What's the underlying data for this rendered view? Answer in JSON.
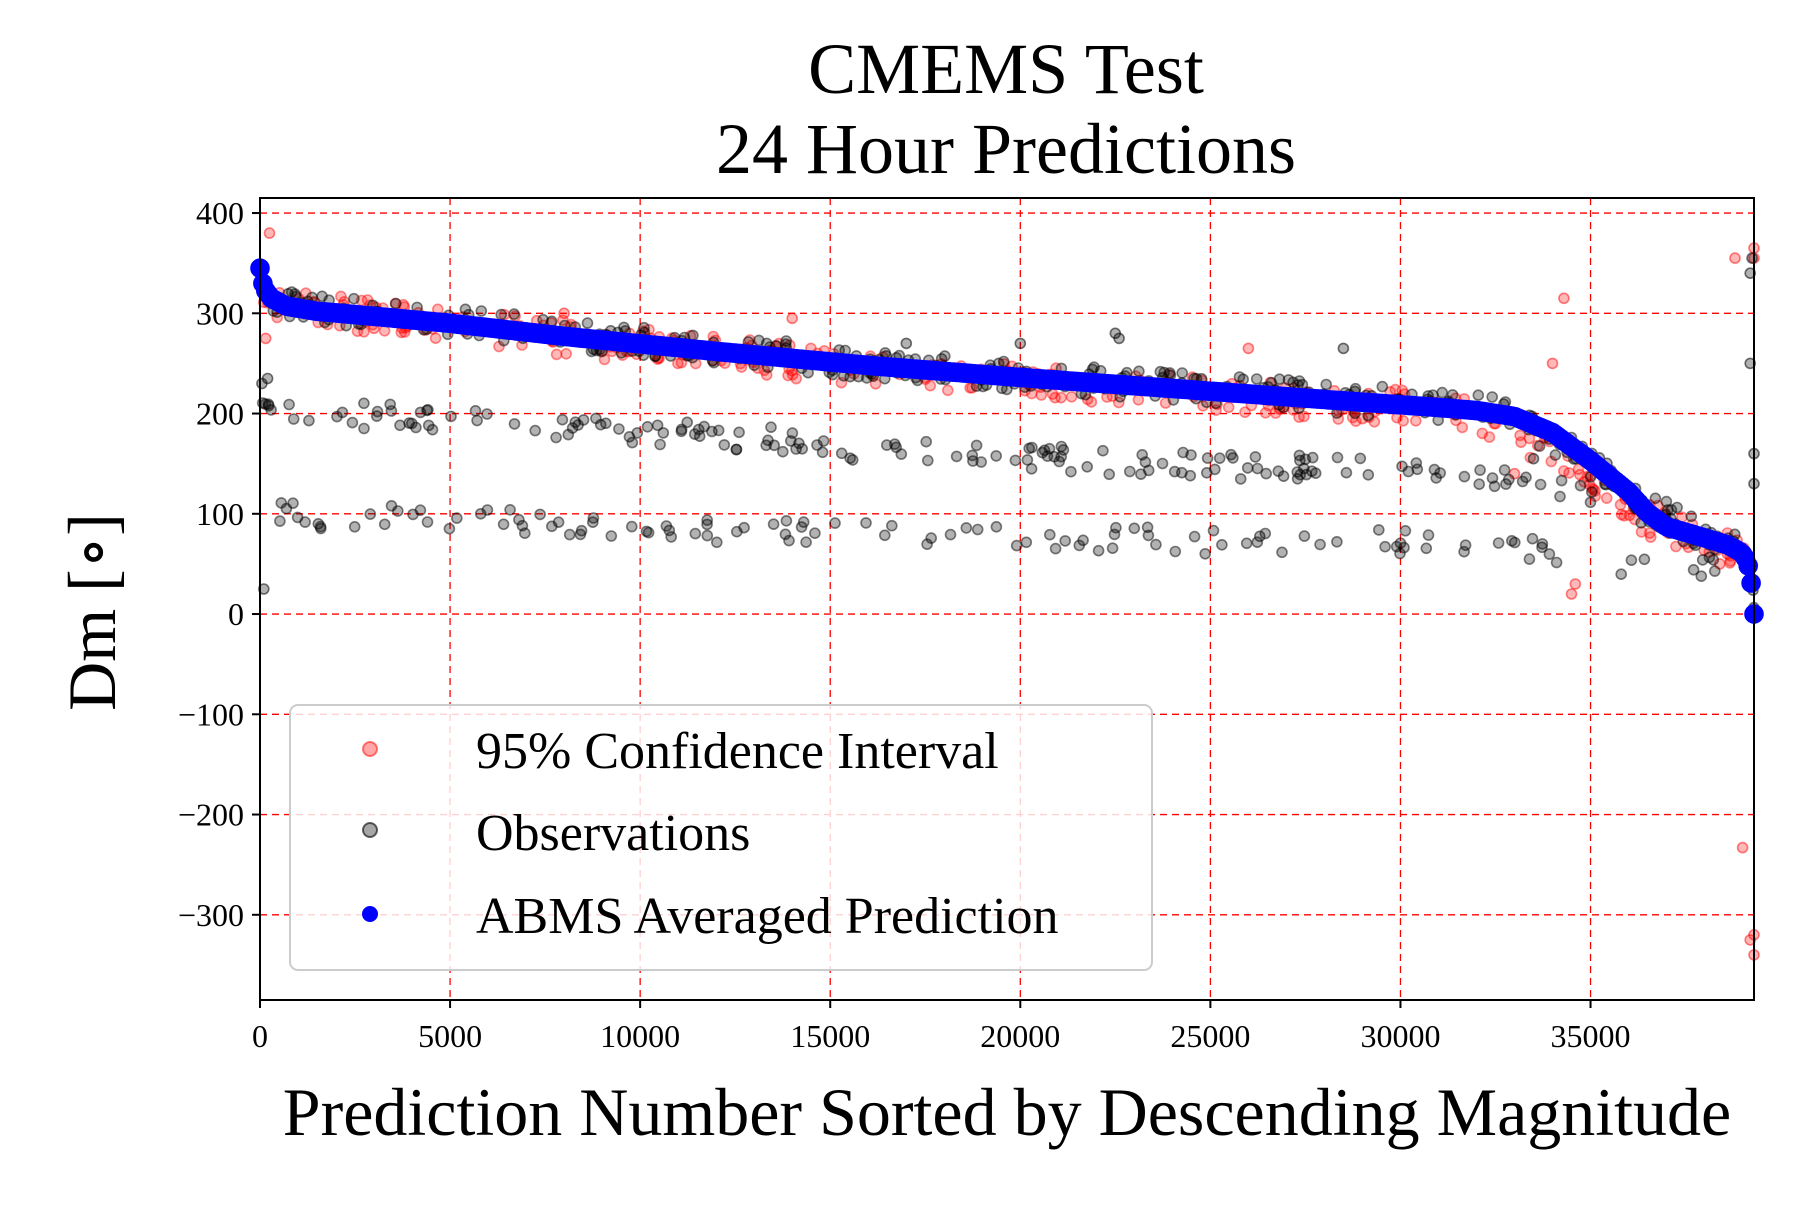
{
  "chart_data": {
    "type": "scatter",
    "title": "CMEMS Test",
    "subtitle": "24 Hour Predictions",
    "xlabel": "Prediction Number Sorted by Descending Magnitude",
    "ylabel": "Dm [∘]",
    "xlim": [
      0,
      39300
    ],
    "ylim": [
      -385,
      415
    ],
    "x_ticks": [
      0,
      5000,
      10000,
      15000,
      20000,
      25000,
      30000,
      35000
    ],
    "x_tick_labels": [
      "0",
      "5000",
      "10000",
      "15000",
      "20000",
      "25000",
      "30000",
      "35000"
    ],
    "y_ticks": [
      400,
      300,
      200,
      100,
      0,
      -100,
      -200,
      -300
    ],
    "y_tick_labels": [
      "400",
      "300",
      "200",
      "100",
      "0",
      "−100",
      "−200",
      "−300"
    ],
    "grid": true,
    "grid_color": "#ff0000",
    "legend_position": "lower-left",
    "colors": {
      "ci": "#ff0000",
      "obs": "#000000",
      "pred": "#0000ff"
    },
    "series": [
      {
        "name": "95% Confidence Interval",
        "style": "markers",
        "color": "#ff0000",
        "trend": {
          "x": [
            0,
            100,
            300,
            700,
            1500,
            3000,
            5000,
            8000,
            12000,
            16000,
            20000,
            24000,
            28000,
            31000,
            32500,
            34000,
            35000,
            36500,
            38000,
            38900,
            39150,
            39300
          ],
          "y": [
            348,
            325,
            315,
            307,
            302,
            297,
            290,
            276,
            260,
            246,
            234,
            222,
            212,
            203,
            193,
            162,
            138,
            94,
            74,
            60,
            42,
            5
          ]
        },
        "outliers": {
          "x": [
            150,
            250,
            3000,
            8000,
            14000,
            26000,
            29000,
            33000,
            34000,
            34300,
            34500,
            34600,
            38400,
            38600,
            38800,
            39000,
            39200,
            39300,
            39300,
            39300,
            39300
          ],
          "y": [
            275,
            380,
            285,
            300,
            295,
            265,
            195,
            140,
            250,
            315,
            20,
            30,
            50,
            60,
            355,
            -233,
            -325,
            -340,
            -320,
            355,
            365
          ]
        }
      },
      {
        "name": "Observations",
        "style": "markers",
        "color": "#000000",
        "trend": {
          "x": [
            0,
            100,
            300,
            700,
            1500,
            3000,
            5000,
            8000,
            12000,
            16000,
            20000,
            24000,
            28000,
            31000,
            32500,
            34000,
            35000,
            36500,
            38000,
            38900,
            39150,
            39300
          ],
          "y": [
            340,
            322,
            314,
            308,
            303,
            298,
            292,
            279,
            264,
            250,
            238,
            227,
            216,
            208,
            202,
            175,
            150,
            105,
            82,
            66,
            48,
            8
          ]
        },
        "bands": [
          {
            "x": [
              0,
              2000,
              5000,
              8000,
              10000,
              13000,
              16000,
              19000,
              22000,
              25000,
              28000,
              31000,
              33000,
              35000,
              36500,
              38000,
              39000
            ],
            "y": [
              210,
              200,
              192,
              185,
              182,
              175,
              165,
              160,
              152,
              148,
              145,
              142,
              135,
              120,
              95,
              60,
              40
            ]
          },
          {
            "x": [
              0,
              500,
              2000,
              5000,
              8000,
              10000,
              13000,
              16000,
              19000,
              22000,
              25000,
              28000,
              31000,
              33000,
              35000,
              37000,
              39000
            ],
            "y": [
              110,
              100,
              97,
              93,
              90,
              88,
              82,
              80,
              78,
              75,
              72,
              72,
              70,
              68,
              58,
              40,
              25
            ]
          }
        ],
        "outliers": {
          "x": [
            100,
            50,
            200,
            17000,
            20000,
            22500,
            22600,
            28500,
            33500,
            39200,
            39250,
            39200,
            39300,
            39300
          ],
          "y": [
            25,
            230,
            235,
            270,
            270,
            280,
            275,
            265,
            155,
            340,
            355,
            250,
            160,
            130
          ]
        }
      },
      {
        "name": "ABMS Averaged Prediction",
        "style": "thick-markers",
        "color": "#0000ff",
        "trend": {
          "x": [
            0,
            100,
            300,
            700,
            1500,
            3000,
            5000,
            8000,
            12000,
            16000,
            20000,
            24000,
            28000,
            31000,
            32000,
            33000,
            34000,
            35000,
            36000,
            36500,
            37000,
            38000,
            38600,
            38900,
            39050,
            39150,
            39250,
            39300
          ],
          "y": [
            345,
            325,
            315,
            307,
            302,
            297,
            290,
            277,
            262,
            248,
            236,
            225,
            214,
            206,
            203,
            197,
            181,
            153,
            122,
            101,
            87,
            76,
            69,
            63,
            58,
            48,
            25,
            0
          ]
        }
      }
    ],
    "legend": [
      {
        "key": "ci",
        "label": "95% Confidence Interval"
      },
      {
        "key": "obs",
        "label": "Observations"
      },
      {
        "key": "pred",
        "label": "ABMS Averaged Prediction"
      }
    ]
  }
}
